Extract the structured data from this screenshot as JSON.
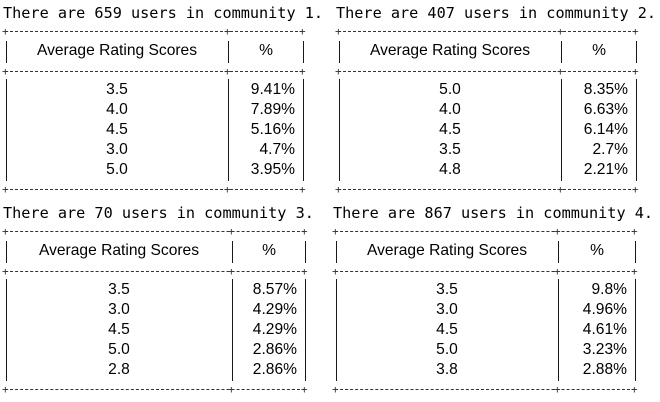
{
  "panels": [
    {
      "caption": "There are 659 users in community 1.",
      "headers": {
        "score": "Average Rating Scores",
        "pct": "%"
      },
      "rows": [
        {
          "score": "3.5",
          "pct": "9.41%"
        },
        {
          "score": "4.0",
          "pct": "7.89%"
        },
        {
          "score": "4.5",
          "pct": "5.16%"
        },
        {
          "score": "3.0",
          "pct": "4.7%"
        },
        {
          "score": "5.0",
          "pct": "3.95%"
        }
      ]
    },
    {
      "caption": "There are 407 users in community 2.",
      "headers": {
        "score": "Average Rating Scores",
        "pct": "%"
      },
      "rows": [
        {
          "score": "5.0",
          "pct": "8.35%"
        },
        {
          "score": "4.0",
          "pct": "6.63%"
        },
        {
          "score": "4.5",
          "pct": "6.14%"
        },
        {
          "score": "3.5",
          "pct": "2.7%"
        },
        {
          "score": "4.8",
          "pct": "2.21%"
        }
      ]
    },
    {
      "caption": "There are 70 users in community 3.",
      "headers": {
        "score": "Average Rating Scores",
        "pct": "%"
      },
      "rows": [
        {
          "score": "3.5",
          "pct": "8.57%"
        },
        {
          "score": "3.0",
          "pct": "4.29%"
        },
        {
          "score": "4.5",
          "pct": "4.29%"
        },
        {
          "score": "5.0",
          "pct": "2.86%"
        },
        {
          "score": "2.8",
          "pct": "2.86%"
        }
      ]
    },
    {
      "caption": "There are 867 users in community 4.",
      "headers": {
        "score": "Average Rating Scores",
        "pct": "%"
      },
      "rows": [
        {
          "score": "3.5",
          "pct": "9.8%"
        },
        {
          "score": "3.0",
          "pct": "4.96%"
        },
        {
          "score": "4.5",
          "pct": "4.61%"
        },
        {
          "score": "5.0",
          "pct": "3.23%"
        },
        {
          "score": "3.8",
          "pct": "2.88%"
        }
      ]
    }
  ]
}
